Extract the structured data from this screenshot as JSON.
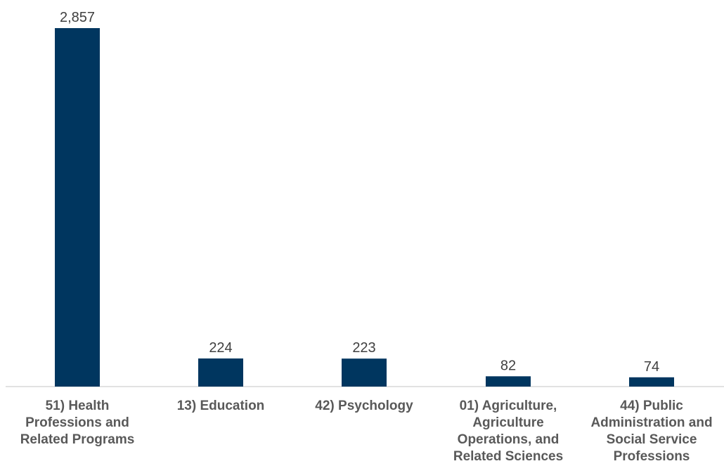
{
  "chart_data": {
    "type": "bar",
    "categories": [
      [
        "51) Health",
        "Professions and",
        "Related Programs"
      ],
      [
        "13) Education"
      ],
      [
        "42) Psychology"
      ],
      [
        "01) Agriculture,",
        "Agriculture",
        "Operations, and",
        "Related Sciences"
      ],
      [
        "44) Public",
        "Administration and",
        "Social Service",
        "Professions"
      ]
    ],
    "values": [
      2857,
      224,
      223,
      82,
      74
    ],
    "value_labels": [
      "2,857",
      "224",
      "223",
      "82",
      "74"
    ],
    "ylim": [
      0,
      3000
    ],
    "bar_color": "#00365f",
    "grid": false,
    "legend": "none"
  }
}
